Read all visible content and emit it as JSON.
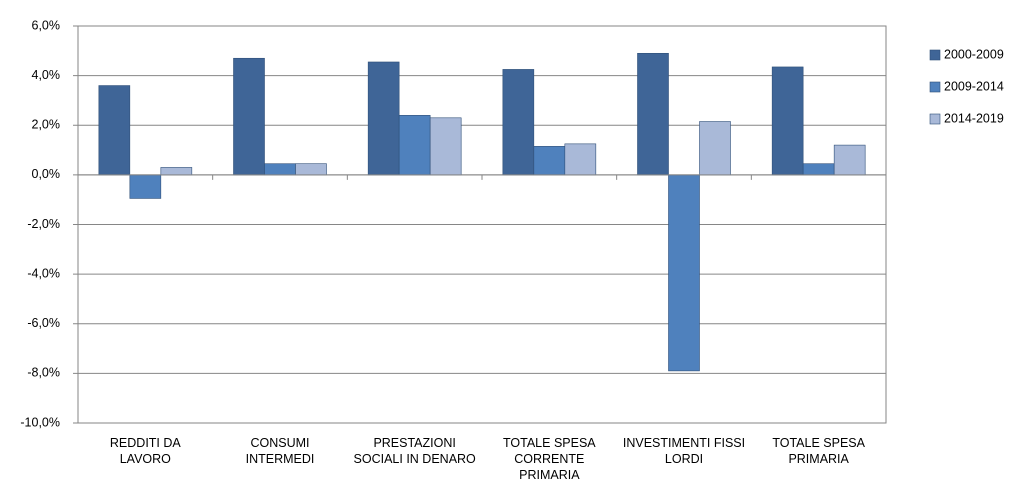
{
  "chart_data": {
    "type": "bar",
    "categories": [
      "REDDITI DA LAVORO",
      "CONSUMI INTERMEDI",
      "PRESTAZIONI SOCIALI IN DENARO",
      "TOTALE SPESA CORRENTE PRIMARIA",
      "INVESTIMENTI FISSI LORDI",
      "TOTALE SPESA PRIMARIA"
    ],
    "series": [
      {
        "name": "2000-2009",
        "color": "#3f6597",
        "values": [
          3.6,
          4.7,
          4.55,
          4.25,
          4.9,
          4.35
        ]
      },
      {
        "name": "2009-2014",
        "color": "#4f81bd",
        "values": [
          -0.95,
          0.45,
          2.4,
          1.15,
          -7.9,
          0.45
        ]
      },
      {
        "name": "2014-2019",
        "color": "#a9b9d8",
        "values": [
          0.3,
          0.45,
          2.3,
          1.25,
          2.15,
          1.2
        ]
      }
    ],
    "ylim": [
      -10,
      6
    ],
    "yticks": [
      {
        "value": -10,
        "label": "-10,0%"
      },
      {
        "value": -8,
        "label": "-8,0%"
      },
      {
        "value": -6,
        "label": "-6,0%"
      },
      {
        "value": -4,
        "label": "-4,0%"
      },
      {
        "value": -2,
        "label": "-2,0%"
      },
      {
        "value": 0,
        "label": "0,0%"
      },
      {
        "value": 2,
        "label": "2,0%"
      },
      {
        "value": 4,
        "label": "4,0%"
      },
      {
        "value": 6,
        "label": "6,0%"
      }
    ],
    "grid": true,
    "legend": "right"
  }
}
